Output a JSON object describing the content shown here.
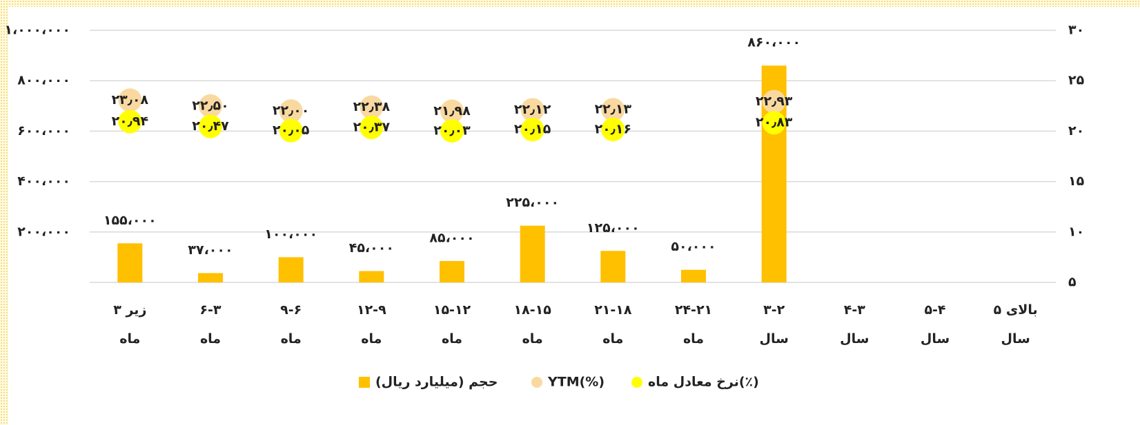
{
  "chart_data": {
    "type": "bar",
    "categories": [
      "زیر ۳ ماه",
      "۶-۳ ماه",
      "۹-۶ ماه",
      "۱۲-۹ ماه",
      "۱۵-۱۲ ماه",
      "۱۸-۱۵ ماه",
      "۲۱-۱۸ ماه",
      "۲۴-۲۱ ماه",
      "۳-۲ سال",
      "۴-۳ سال",
      "۵-۴ سال",
      "بالای ۵ سال"
    ],
    "series": [
      {
        "name": "حجم (میلیارد ریال)",
        "type": "bar",
        "color": "#FFC000",
        "values": [
          155000,
          37000,
          100000,
          45000,
          85000,
          225000,
          125000,
          50000,
          860000,
          null,
          null,
          null
        ],
        "value_labels": [
          "۱۵۵،۰۰۰",
          "۳۷،۰۰۰",
          "۱۰۰،۰۰۰",
          "۴۵،۰۰۰",
          "۸۵،۰۰۰",
          "۲۲۵،۰۰۰",
          "۱۲۵،۰۰۰",
          "۵۰،۰۰۰",
          "۸۶۰،۰۰۰",
          null,
          null,
          null
        ]
      },
      {
        "name": "YTM(%)",
        "type": "scatter",
        "axis": "y2",
        "color": "#FAD9A1",
        "values": [
          23.08,
          22.5,
          22.0,
          22.38,
          21.98,
          22.12,
          22.13,
          null,
          22.93,
          null,
          null,
          null
        ],
        "value_labels": [
          "۲۳٫۰۸",
          "۲۲٫۵۰",
          "۲۲٫۰۰",
          "۲۲٫۳۸",
          "۲۱٫۹۸",
          "۲۲٫۱۲",
          "۲۲٫۱۳",
          null,
          "۲۲٫۹۳",
          null,
          null,
          null
        ]
      },
      {
        "name": "نرخ معادل ماه(٪)",
        "type": "scatter",
        "axis": "y2",
        "color": "#FFFF00",
        "values": [
          20.94,
          20.47,
          20.05,
          20.37,
          20.03,
          20.15,
          20.16,
          null,
          20.83,
          null,
          null,
          null
        ],
        "value_labels": [
          "۲۰٫۹۴",
          "۲۰٫۴۷",
          "۲۰٫۰۵",
          "۲۰٫۳۷",
          "۲۰٫۰۳",
          "۲۰٫۱۵",
          "۲۰٫۱۶",
          null,
          "۲۰٫۸۳",
          null,
          null,
          null
        ]
      }
    ],
    "ylim": [
      0,
      1000000
    ],
    "yticks": [
      {
        "value": 200000,
        "label": "۲۰۰،۰۰۰"
      },
      {
        "value": 400000,
        "label": "۴۰۰،۰۰۰"
      },
      {
        "value": 600000,
        "label": "۶۰۰،۰۰۰"
      },
      {
        "value": 800000,
        "label": "۸۰۰،۰۰۰"
      },
      {
        "value": 1000000,
        "label": "۱،۰۰۰،۰۰۰"
      }
    ],
    "y2lim": [
      5,
      30
    ],
    "y2ticks": [
      {
        "value": 5,
        "label": "۵"
      },
      {
        "value": 10,
        "label": "۱۰"
      },
      {
        "value": 15,
        "label": "۱۵"
      },
      {
        "value": 20,
        "label": "۲۰"
      },
      {
        "value": 25,
        "label": "۲۵"
      },
      {
        "value": 30,
        "label": "۳۰"
      }
    ],
    "grid": true,
    "legend": "bottom"
  }
}
